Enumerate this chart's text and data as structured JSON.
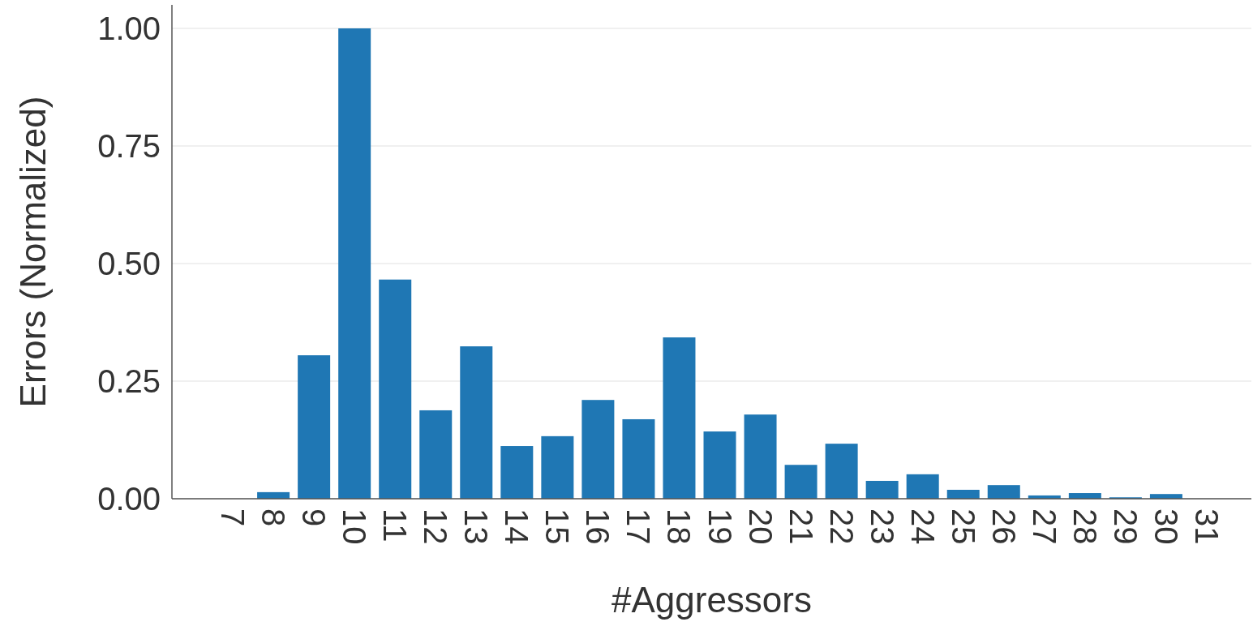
{
  "chart_data": {
    "type": "bar",
    "xlabel": "#Aggressors",
    "ylabel": "Errors (Normalized)",
    "categories": [
      "7",
      "8",
      "9",
      "10",
      "11",
      "12",
      "13",
      "14",
      "15",
      "16",
      "17",
      "18",
      "19",
      "20",
      "21",
      "22",
      "23",
      "24",
      "25",
      "26",
      "27",
      "28",
      "29",
      "30",
      "31"
    ],
    "values": [
      0,
      0.014,
      0.305,
      1.0,
      0.466,
      0.188,
      0.324,
      0.112,
      0.133,
      0.21,
      0.169,
      0.343,
      0.143,
      0.179,
      0.072,
      0.117,
      0.038,
      0.052,
      0.019,
      0.029,
      0.007,
      0.012,
      0.003,
      0.01,
      0
    ],
    "color": "#1f77b4",
    "ylim": [
      0,
      1.05
    ],
    "yticks": [
      {
        "value": 0,
        "label": "0.00"
      },
      {
        "value": 0.25,
        "label": "0.25"
      },
      {
        "value": 0.5,
        "label": "0.50"
      },
      {
        "value": 0.75,
        "label": "0.75"
      },
      {
        "value": 1,
        "label": "1.00"
      }
    ],
    "grid": "y"
  }
}
